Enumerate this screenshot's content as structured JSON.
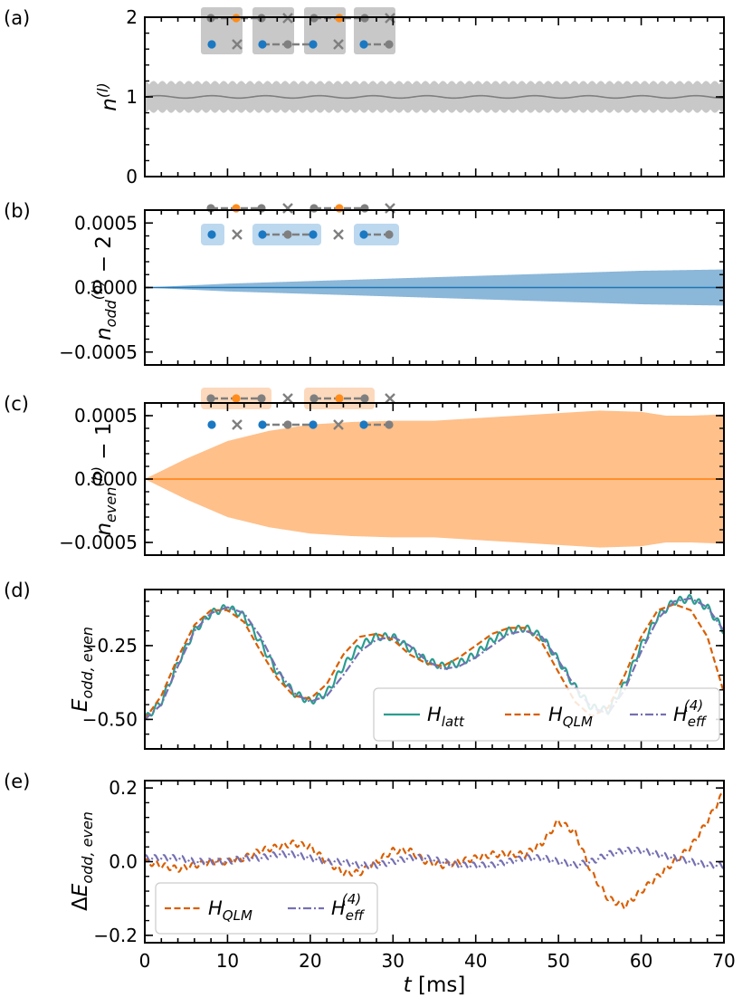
{
  "chart_data": [
    {
      "panel": "(a)",
      "type": "line",
      "ylabel": "n^(l)",
      "ylim": [
        0,
        2
      ],
      "yticks": [
        "0",
        "1",
        "2"
      ],
      "xlim": [
        0,
        70
      ],
      "series": [
        {
          "color": "#7f7f7f",
          "band_color": "#c8c8c8",
          "t": [
            0,
            10,
            20,
            30,
            40,
            50,
            60,
            70
          ],
          "mean": [
            1.0,
            1.0,
            1.0,
            1.0,
            1.0,
            1.0,
            1.0,
            1.0
          ],
          "band_halfwidth": [
            0.2,
            0.2,
            0.2,
            0.2,
            0.2,
            0.2,
            0.2,
            0.2
          ]
        }
      ],
      "inset": {
        "row1": "odd-sites-gray-orange",
        "row2": "blue-sites",
        "highlight": "all",
        "highlight_color": "#c8c8c8"
      }
    },
    {
      "panel": "(b)",
      "type": "line",
      "ylabel": "n_odd^(b) − 2",
      "ylim": [
        -0.0006,
        0.0006
      ],
      "yticks": [
        "−0.0005",
        "0.0000",
        "0.0005"
      ],
      "xlim": [
        0,
        70
      ],
      "series": [
        {
          "color": "#1f77b4",
          "band_color": "#8bb7d9",
          "t": [
            0,
            10,
            20,
            30,
            40,
            50,
            60,
            70
          ],
          "mean": [
            0,
            0,
            0,
            0,
            0,
            0,
            0,
            0
          ],
          "band_halfwidth": [
            0,
            3e-05,
            5e-05,
            7e-05,
            9e-05,
            0.00011,
            0.00013,
            0.00014
          ]
        }
      ],
      "inset": {
        "row1": "odd-sites-gray-orange",
        "row2": "blue-sites",
        "highlight": "row2",
        "highlight_color": "#bcd8ef"
      }
    },
    {
      "panel": "(c)",
      "type": "line",
      "ylabel": "n_even^(b) − 1",
      "ylim": [
        -0.0006,
        0.0006
      ],
      "yticks": [
        "−0.0005",
        "0.0000",
        "0.0005"
      ],
      "xlim": [
        0,
        70
      ],
      "series": [
        {
          "color": "#ff7f0e",
          "band_color": "#ffc08a",
          "t": [
            0,
            5,
            10,
            15,
            20,
            25,
            30,
            35,
            40,
            45,
            50,
            55,
            60,
            63,
            66,
            70
          ],
          "mean": [
            0,
            0,
            0,
            0,
            0,
            0,
            0,
            0,
            0,
            0,
            0,
            0,
            0,
            0,
            0,
            0
          ],
          "band_halfwidth": [
            0,
            0.00016,
            0.0003,
            0.00038,
            0.00043,
            0.00045,
            0.00046,
            0.00046,
            0.00048,
            0.0005,
            0.00052,
            0.00054,
            0.00053,
            0.0005,
            0.0005,
            0.00051
          ]
        }
      ],
      "inset": {
        "row1": "odd-sites-gray-orange",
        "row2": "blue-sites",
        "highlight": "row1",
        "highlight_color": "#fcd9bc"
      }
    },
    {
      "panel": "(d)",
      "type": "line",
      "ylabel": "E_odd,even",
      "ylim": [
        -0.6,
        -0.06
      ],
      "yticks": [
        "−0.50",
        "−0.25"
      ],
      "xlim": [
        0,
        70
      ],
      "series": [
        {
          "name": "H_latt",
          "color": "#2a9d8f",
          "style": "solid",
          "t": [
            0,
            2,
            4,
            6,
            8,
            10,
            12,
            14,
            16,
            18,
            20,
            22,
            24,
            26,
            28,
            30,
            32,
            34,
            36,
            38,
            40,
            42,
            44,
            46,
            48,
            50,
            52,
            54,
            56,
            58,
            60,
            62,
            64,
            66,
            68,
            70
          ],
          "y": [
            -0.5,
            -0.44,
            -0.31,
            -0.2,
            -0.14,
            -0.12,
            -0.15,
            -0.24,
            -0.34,
            -0.41,
            -0.44,
            -0.41,
            -0.32,
            -0.25,
            -0.22,
            -0.22,
            -0.26,
            -0.3,
            -0.32,
            -0.31,
            -0.28,
            -0.23,
            -0.2,
            -0.19,
            -0.22,
            -0.3,
            -0.39,
            -0.46,
            -0.47,
            -0.38,
            -0.25,
            -0.15,
            -0.1,
            -0.09,
            -0.12,
            -0.2
          ]
        },
        {
          "name": "H_QLM",
          "color": "#d95f02",
          "style": "dashed",
          "t": [
            0,
            2,
            4,
            6,
            8,
            10,
            12,
            14,
            16,
            18,
            20,
            22,
            24,
            26,
            28,
            30,
            32,
            34,
            36,
            38,
            40,
            42,
            44,
            46,
            48,
            50,
            52,
            54,
            56,
            58,
            60,
            62,
            64,
            66,
            68,
            70
          ],
          "y": [
            -0.5,
            -0.42,
            -0.29,
            -0.18,
            -0.13,
            -0.13,
            -0.17,
            -0.27,
            -0.36,
            -0.42,
            -0.43,
            -0.38,
            -0.28,
            -0.22,
            -0.21,
            -0.23,
            -0.28,
            -0.31,
            -0.32,
            -0.29,
            -0.25,
            -0.21,
            -0.19,
            -0.19,
            -0.24,
            -0.34,
            -0.44,
            -0.49,
            -0.46,
            -0.35,
            -0.22,
            -0.13,
            -0.11,
            -0.13,
            -0.22,
            -0.41
          ]
        },
        {
          "name": "H_eff^(4)",
          "color": "#7570b3",
          "style": "dashdot",
          "t": [
            0,
            2,
            4,
            6,
            8,
            10,
            12,
            14,
            16,
            18,
            20,
            22,
            24,
            26,
            28,
            30,
            32,
            34,
            36,
            38,
            40,
            42,
            44,
            46,
            48,
            50,
            52,
            54,
            56,
            58,
            60,
            62,
            64,
            66,
            68,
            70
          ],
          "y": [
            -0.5,
            -0.45,
            -0.32,
            -0.2,
            -0.14,
            -0.12,
            -0.14,
            -0.22,
            -0.33,
            -0.41,
            -0.44,
            -0.42,
            -0.35,
            -0.27,
            -0.23,
            -0.22,
            -0.25,
            -0.3,
            -0.33,
            -0.32,
            -0.29,
            -0.25,
            -0.21,
            -0.2,
            -0.22,
            -0.3,
            -0.39,
            -0.46,
            -0.48,
            -0.4,
            -0.27,
            -0.16,
            -0.1,
            -0.09,
            -0.12,
            -0.2
          ]
        }
      ],
      "legend": {
        "placement": "lower-right",
        "entries": [
          "H",
          "H",
          "H"
        ],
        "subs": [
          "latt",
          "QLM",
          "eff"
        ],
        "sups": [
          "",
          "",
          "(4)"
        ]
      }
    },
    {
      "panel": "(e)",
      "type": "line",
      "ylabel": "ΔE_odd,even",
      "ylim": [
        -0.22,
        0.22
      ],
      "yticks": [
        "−0.2",
        "0.0",
        "0.2"
      ],
      "xlim": [
        0,
        70
      ],
      "xticks": [
        "0",
        "10",
        "20",
        "30",
        "40",
        "50",
        "60",
        "70"
      ],
      "xlabel": "t [ms]",
      "series": [
        {
          "name": "H_QLM",
          "color": "#d95f02",
          "style": "dashed",
          "t": [
            0,
            2,
            4,
            6,
            8,
            10,
            12,
            14,
            16,
            18,
            20,
            22,
            24,
            26,
            28,
            30,
            32,
            34,
            36,
            38,
            40,
            42,
            44,
            46,
            48,
            50,
            52,
            54,
            56,
            58,
            60,
            62,
            64,
            66,
            68,
            70
          ],
          "y": [
            0.0,
            -0.01,
            -0.02,
            -0.01,
            0.0,
            0.0,
            0.01,
            0.03,
            0.04,
            0.05,
            0.04,
            0.0,
            -0.03,
            -0.03,
            0.0,
            0.03,
            0.03,
            0.0,
            -0.01,
            0.0,
            0.01,
            0.02,
            0.02,
            0.02,
            0.05,
            0.11,
            0.08,
            -0.03,
            -0.1,
            -0.12,
            -0.08,
            -0.04,
            0.0,
            0.04,
            0.11,
            0.19
          ]
        },
        {
          "name": "H_eff^(4)",
          "color": "#7570b3",
          "style": "dashdot",
          "t": [
            0,
            2,
            4,
            6,
            8,
            10,
            12,
            14,
            16,
            18,
            20,
            22,
            24,
            26,
            28,
            30,
            32,
            34,
            36,
            38,
            40,
            42,
            44,
            46,
            48,
            50,
            52,
            54,
            56,
            58,
            60,
            62,
            64,
            66,
            68,
            70
          ],
          "y": [
            0.01,
            0.01,
            0.01,
            0.0,
            0.0,
            0.0,
            0.01,
            0.01,
            0.02,
            0.02,
            0.01,
            0.0,
            0.0,
            -0.01,
            -0.01,
            0.0,
            0.01,
            0.01,
            0.0,
            -0.01,
            -0.01,
            -0.01,
            0.0,
            0.01,
            0.01,
            0.0,
            -0.01,
            0.0,
            0.02,
            0.03,
            0.03,
            0.02,
            0.01,
            0.0,
            -0.01,
            -0.01
          ]
        }
      ],
      "legend": {
        "placement": "lower-left",
        "entries": [
          "H",
          "H"
        ],
        "subs": [
          "QLM",
          "eff"
        ],
        "sups": [
          "",
          "(4)"
        ]
      }
    }
  ]
}
